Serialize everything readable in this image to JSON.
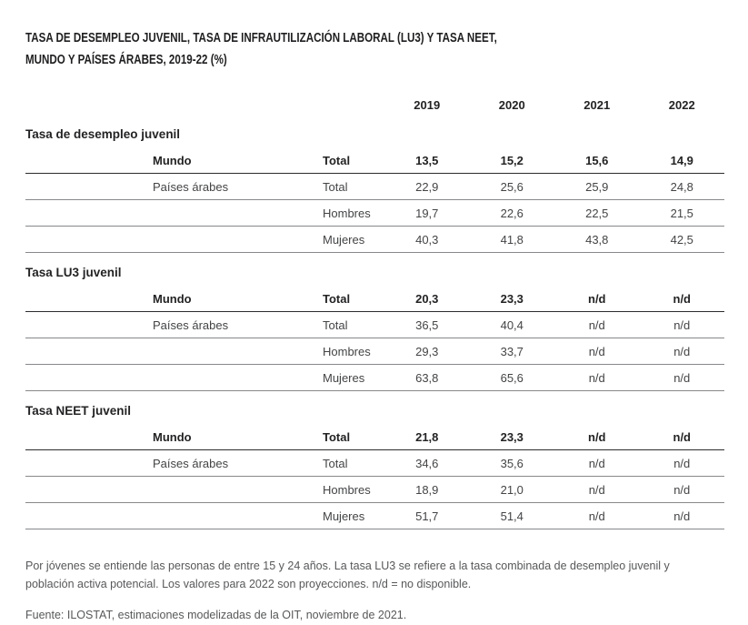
{
  "title": {
    "line1": "TASA DE DESEMPLEO JUVENIL, TASA DE INFRAUTILIZACIÓN LABORAL (LU3) Y TASA NEET,",
    "line2": "MUNDO Y PAÍSES ÁRABES, 2019-22 (%)"
  },
  "table": {
    "year_columns": [
      "2019",
      "2020",
      "2021",
      "2022"
    ],
    "sections": [
      {
        "title": "Tasa de desempleo juvenil",
        "rows": [
          {
            "geo": "Mundo",
            "attr": "Total",
            "emphasis": true,
            "values": [
              "13,5",
              "15,2",
              "15,6",
              "14,9"
            ]
          },
          {
            "geo": "Países árabes",
            "attr": "Total",
            "emphasis": false,
            "values": [
              "22,9",
              "25,6",
              "25,9",
              "24,8"
            ]
          },
          {
            "geo": "",
            "attr": "Hombres",
            "emphasis": false,
            "values": [
              "19,7",
              "22,6",
              "22,5",
              "21,5"
            ]
          },
          {
            "geo": "",
            "attr": "Mujeres",
            "emphasis": false,
            "values": [
              "40,3",
              "41,8",
              "43,8",
              "42,5"
            ]
          }
        ]
      },
      {
        "title": "Tasa LU3 juvenil",
        "rows": [
          {
            "geo": "Mundo",
            "attr": "Total",
            "emphasis": true,
            "values": [
              "20,3",
              "23,3",
              "n/d",
              "n/d"
            ]
          },
          {
            "geo": "Países árabes",
            "attr": "Total",
            "emphasis": false,
            "values": [
              "36,5",
              "40,4",
              "n/d",
              "n/d"
            ]
          },
          {
            "geo": "",
            "attr": "Hombres",
            "emphasis": false,
            "values": [
              "29,3",
              "33,7",
              "n/d",
              "n/d"
            ]
          },
          {
            "geo": "",
            "attr": "Mujeres",
            "emphasis": false,
            "values": [
              "63,8",
              "65,6",
              "n/d",
              "n/d"
            ]
          }
        ]
      },
      {
        "title": "Tasa NEET juvenil",
        "rows": [
          {
            "geo": "Mundo",
            "attr": "Total",
            "emphasis": true,
            "values": [
              "21,8",
              "23,3",
              "n/d",
              "n/d"
            ]
          },
          {
            "geo": "Países árabes",
            "attr": "Total",
            "emphasis": false,
            "values": [
              "34,6",
              "35,6",
              "n/d",
              "n/d"
            ]
          },
          {
            "geo": "",
            "attr": "Hombres",
            "emphasis": false,
            "values": [
              "18,9",
              "21,0",
              "n/d",
              "n/d"
            ]
          },
          {
            "geo": "",
            "attr": "Mujeres",
            "emphasis": false,
            "values": [
              "51,7",
              "51,4",
              "n/d",
              "n/d"
            ]
          }
        ]
      }
    ]
  },
  "notes": {
    "definition": "Por jóvenes se entiende las personas de entre 15 y 24 años. La tasa LU3 se refiere a la tasa combinada de desempleo juvenil y población activa potencial. Los valores para 2022 son proyecciones. n/d = no disponible.",
    "source": "Fuente: ILOSTAT, estimaciones modelizadas de la OIT, noviembre de 2021."
  },
  "colors": {
    "text_strong": "#232325",
    "text_regular": "#434446",
    "rule_strong": "#2c2c2e",
    "rule_light": "#86888b",
    "note_text": "#57585a"
  }
}
